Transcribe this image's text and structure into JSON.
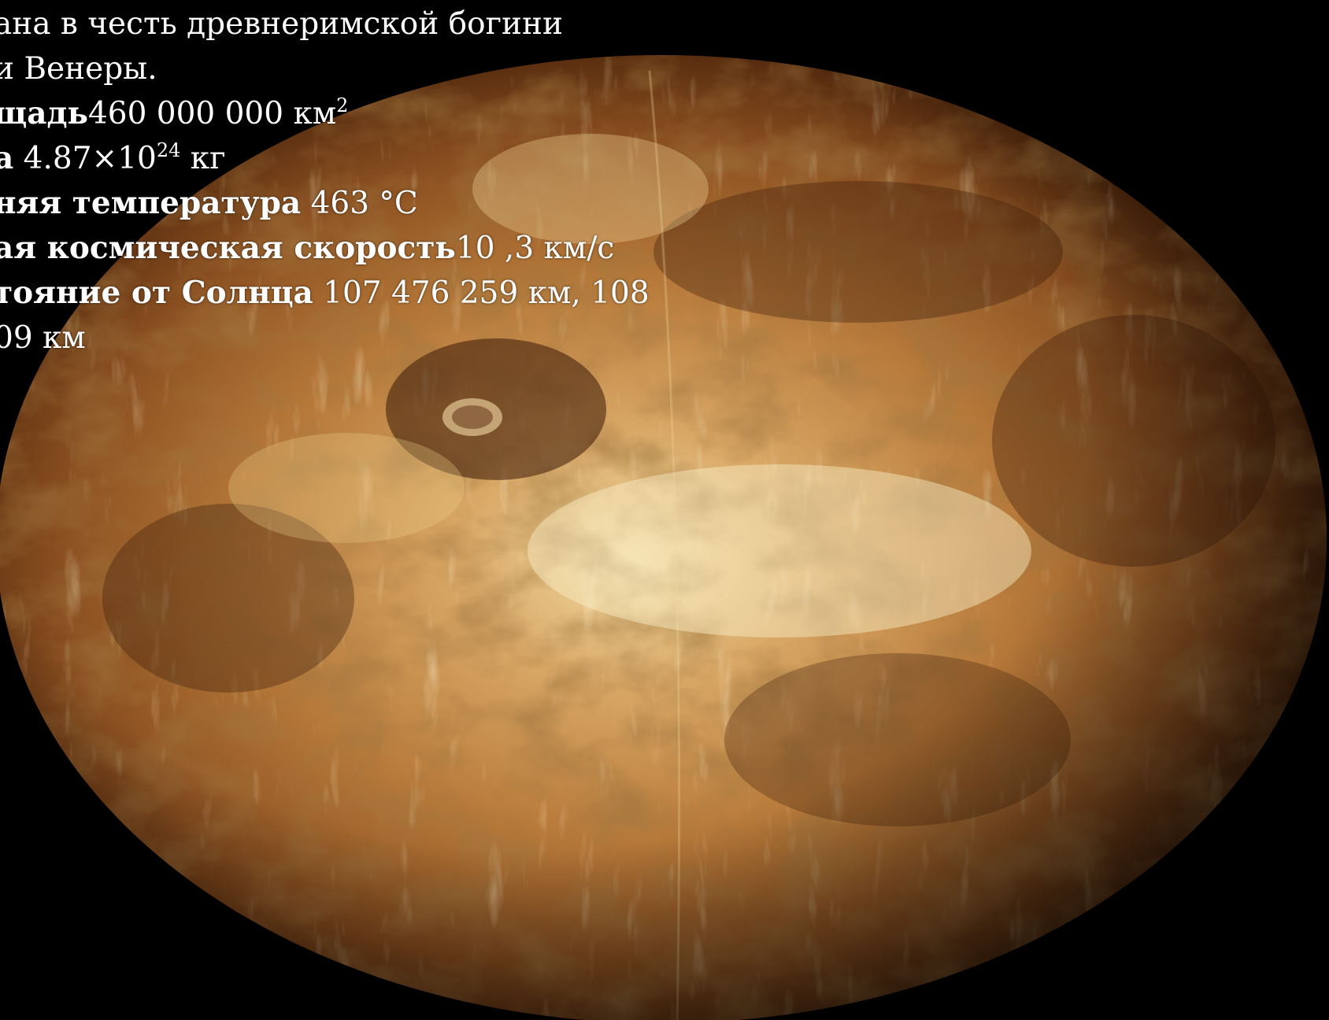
{
  "slide": {
    "lines": [
      {
        "text": "ана в честь древнеримской богини"
      },
      {
        "text": "и Венеры."
      },
      {
        "label": "щадь",
        "value": "460 000 000 км",
        "sup": "2"
      },
      {
        "label": "а",
        "value": " 4.87×10",
        "sup": "24",
        "suffix": " кг"
      },
      {
        "label": "няя температура",
        "value": " 463 °C"
      },
      {
        "label": "ая космическая скорость",
        "value": "10 ,3 км/с"
      },
      {
        "label": "тояние от Солнца",
        "value": " 107 476 259 км, 108"
      },
      {
        "text": "09 км"
      }
    ]
  },
  "colors": {
    "background": "#000000",
    "text": "#ffffff",
    "planet_light": "#e8c98a",
    "planet_mid": "#b87a3a",
    "planet_dark": "#3a1a08"
  }
}
